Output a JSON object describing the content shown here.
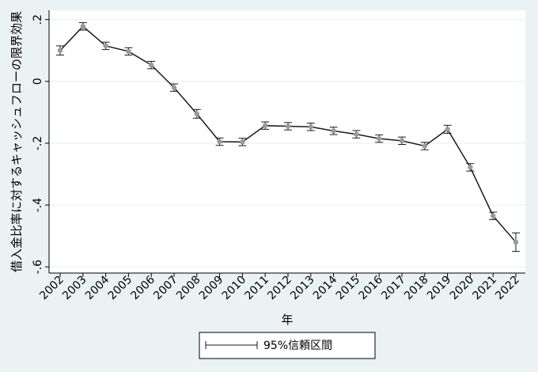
{
  "chart_data": {
    "type": "line",
    "ylabel": "借入金比率に対するキャッシュフローの限界効果",
    "xlabel": "年",
    "ylim": [
      -0.62,
      0.23
    ],
    "y_ticks": [
      0.2,
      0,
      -0.2,
      -0.4,
      -0.6
    ],
    "y_tick_labels": [
      ".2",
      "0",
      "-.2",
      "-.4",
      "-.6"
    ],
    "grid": true,
    "legend_position": "bottom",
    "legend": {
      "label": "95%信頼区間"
    },
    "x": [
      "2002",
      "2003",
      "2004",
      "2005",
      "2006",
      "2007",
      "2008",
      "2009",
      "2010",
      "2011",
      "2012",
      "2013",
      "2014",
      "2015",
      "2016",
      "2017",
      "2018",
      "2019",
      "2020",
      "2021",
      "2022"
    ],
    "series": [
      {
        "values": [
          0.1,
          0.178,
          0.115,
          0.097,
          0.053,
          -0.02,
          -0.105,
          -0.195,
          -0.196,
          -0.143,
          -0.145,
          -0.147,
          -0.16,
          -0.171,
          -0.185,
          -0.192,
          -0.209,
          -0.155,
          -0.278,
          -0.435,
          -0.52
        ],
        "lower": [
          0.085,
          0.166,
          0.103,
          0.085,
          0.041,
          -0.032,
          -0.119,
          -0.207,
          -0.208,
          -0.155,
          -0.157,
          -0.159,
          -0.172,
          -0.183,
          -0.197,
          -0.204,
          -0.221,
          -0.168,
          -0.29,
          -0.447,
          -0.55
        ],
        "upper": [
          0.115,
          0.19,
          0.127,
          0.109,
          0.065,
          -0.008,
          -0.091,
          -0.183,
          -0.184,
          -0.131,
          -0.133,
          -0.135,
          -0.148,
          -0.159,
          -0.173,
          -0.18,
          -0.197,
          -0.142,
          -0.266,
          -0.423,
          -0.49
        ]
      }
    ],
    "colors": {
      "line": "#1a1a1a",
      "marker": "#9a9a9a",
      "plot_bg": "#ffffff",
      "outer_bg": "#eaf2f3",
      "grid": "#e6eef0"
    }
  }
}
